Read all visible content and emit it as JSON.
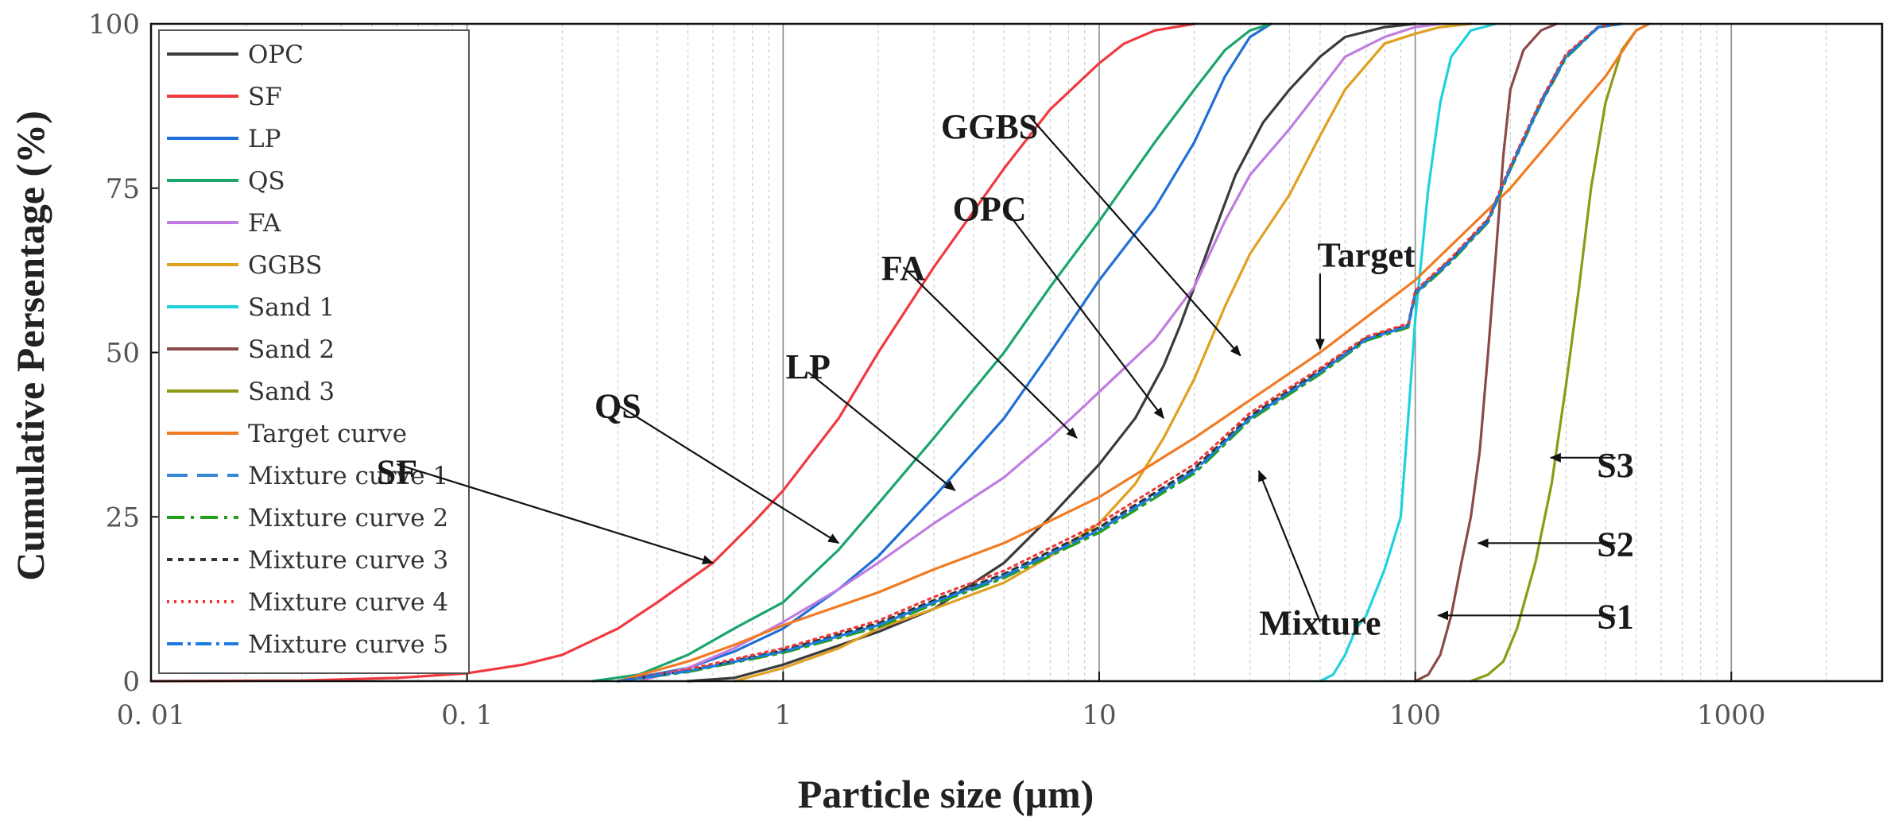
{
  "chart_data": {
    "type": "line",
    "xscale": "log",
    "xlim": [
      0.01,
      3000
    ],
    "ylim": [
      0,
      100
    ],
    "xlabel": "Particle size (μm)",
    "ylabel": "Cumulative Persentage (%)",
    "x_tick_values": [
      0.01,
      0.1,
      1,
      10,
      100,
      1000
    ],
    "x_tick_labels": [
      "0. 01",
      "0. 1",
      "1",
      "10",
      "100",
      "1000"
    ],
    "y_tick_values": [
      0,
      25,
      50,
      75,
      100
    ],
    "y_tick_labels": [
      "0",
      "25",
      "50",
      "75",
      "100"
    ],
    "grid": "x-minor",
    "legend_position": "top-left",
    "series": [
      {
        "name": "OPC",
        "color": "#3b3b3b",
        "dash": "solid",
        "points": [
          [
            0.5,
            0
          ],
          [
            0.7,
            0.5
          ],
          [
            1,
            2.5
          ],
          [
            2,
            7.5
          ],
          [
            3,
            11
          ],
          [
            5,
            18
          ],
          [
            7,
            25
          ],
          [
            10,
            33
          ],
          [
            13,
            40
          ],
          [
            16,
            48
          ],
          [
            18,
            54
          ],
          [
            20,
            60
          ],
          [
            23,
            68
          ],
          [
            27,
            77
          ],
          [
            33,
            85
          ],
          [
            40,
            90
          ],
          [
            50,
            95
          ],
          [
            60,
            98
          ],
          [
            80,
            99.5
          ],
          [
            100,
            100
          ]
        ]
      },
      {
        "name": "SF",
        "color": "#f0393f",
        "dash": "solid",
        "points": [
          [
            0.01,
            0
          ],
          [
            0.03,
            0.1
          ],
          [
            0.06,
            0.5
          ],
          [
            0.1,
            1.2
          ],
          [
            0.15,
            2.5
          ],
          [
            0.2,
            4
          ],
          [
            0.3,
            8
          ],
          [
            0.4,
            12
          ],
          [
            0.6,
            18
          ],
          [
            0.8,
            24
          ],
          [
            1,
            29
          ],
          [
            1.5,
            40
          ],
          [
            2,
            50
          ],
          [
            3,
            63
          ],
          [
            5,
            78
          ],
          [
            7,
            87
          ],
          [
            10,
            94
          ],
          [
            12,
            97
          ],
          [
            15,
            99
          ],
          [
            20,
            100
          ]
        ]
      },
      {
        "name": "LP",
        "color": "#1f6fd6",
        "dash": "solid",
        "points": [
          [
            0.3,
            0
          ],
          [
            0.5,
            2
          ],
          [
            0.7,
            4.5
          ],
          [
            1,
            8
          ],
          [
            1.5,
            14
          ],
          [
            2,
            19
          ],
          [
            3,
            28
          ],
          [
            5,
            40
          ],
          [
            7,
            50
          ],
          [
            10,
            61
          ],
          [
            15,
            72
          ],
          [
            20,
            82
          ],
          [
            25,
            92
          ],
          [
            30,
            98
          ],
          [
            35,
            100
          ]
        ]
      },
      {
        "name": "QS",
        "color": "#1aa56a",
        "dash": "solid",
        "points": [
          [
            0.25,
            0
          ],
          [
            0.35,
            1
          ],
          [
            0.5,
            4
          ],
          [
            0.7,
            8
          ],
          [
            1,
            12
          ],
          [
            1.5,
            20
          ],
          [
            2,
            27
          ],
          [
            3,
            37
          ],
          [
            5,
            50
          ],
          [
            7,
            60
          ],
          [
            10,
            70
          ],
          [
            15,
            82
          ],
          [
            20,
            90
          ],
          [
            25,
            96
          ],
          [
            30,
            99
          ],
          [
            35,
            100
          ]
        ]
      },
      {
        "name": "FA",
        "color": "#c07ce0",
        "dash": "solid",
        "points": [
          [
            0.35,
            0
          ],
          [
            0.5,
            2
          ],
          [
            0.7,
            5
          ],
          [
            1,
            9
          ],
          [
            1.5,
            14
          ],
          [
            2,
            18
          ],
          [
            3,
            24
          ],
          [
            5,
            31
          ],
          [
            7,
            37
          ],
          [
            10,
            44
          ],
          [
            15,
            52
          ],
          [
            20,
            60
          ],
          [
            25,
            70
          ],
          [
            30,
            77
          ],
          [
            40,
            84
          ],
          [
            50,
            90
          ],
          [
            60,
            95
          ],
          [
            80,
            98
          ],
          [
            100,
            99.5
          ],
          [
            120,
            100
          ]
        ]
      },
      {
        "name": "GGBS",
        "color": "#e0a020",
        "dash": "solid",
        "points": [
          [
            0.7,
            0
          ],
          [
            1,
            2
          ],
          [
            1.5,
            5
          ],
          [
            2,
            8
          ],
          [
            3,
            11
          ],
          [
            5,
            15
          ],
          [
            7,
            19
          ],
          [
            10,
            24
          ],
          [
            13,
            30
          ],
          [
            16,
            37
          ],
          [
            20,
            46
          ],
          [
            25,
            57
          ],
          [
            30,
            65
          ],
          [
            40,
            74
          ],
          [
            50,
            83
          ],
          [
            60,
            90
          ],
          [
            80,
            97
          ],
          [
            100,
            98.5
          ],
          [
            120,
            99.5
          ],
          [
            150,
            100
          ]
        ]
      },
      {
        "name": "Sand 1",
        "color": "#1ed2dc",
        "dash": "solid",
        "points": [
          [
            50,
            0
          ],
          [
            55,
            1
          ],
          [
            60,
            4
          ],
          [
            65,
            8
          ],
          [
            70,
            10
          ],
          [
            80,
            17
          ],
          [
            90,
            25
          ],
          [
            95,
            40
          ],
          [
            100,
            55
          ],
          [
            105,
            65
          ],
          [
            110,
            75
          ],
          [
            120,
            88
          ],
          [
            130,
            95
          ],
          [
            150,
            99
          ],
          [
            180,
            100
          ]
        ]
      },
      {
        "name": "Sand 2",
        "color": "#8b4a4a",
        "dash": "solid",
        "points": [
          [
            100,
            0
          ],
          [
            110,
            1
          ],
          [
            120,
            4
          ],
          [
            130,
            10
          ],
          [
            140,
            18
          ],
          [
            150,
            25
          ],
          [
            160,
            35
          ],
          [
            170,
            50
          ],
          [
            180,
            65
          ],
          [
            190,
            80
          ],
          [
            200,
            90
          ],
          [
            220,
            96
          ],
          [
            250,
            99
          ],
          [
            280,
            100
          ]
        ]
      },
      {
        "name": "Sand 3",
        "color": "#8c9a14",
        "dash": "solid",
        "points": [
          [
            150,
            0
          ],
          [
            170,
            1
          ],
          [
            190,
            3
          ],
          [
            210,
            8
          ],
          [
            240,
            18
          ],
          [
            270,
            30
          ],
          [
            300,
            45
          ],
          [
            330,
            60
          ],
          [
            360,
            75
          ],
          [
            400,
            88
          ],
          [
            450,
            96
          ],
          [
            500,
            99
          ],
          [
            550,
            100
          ]
        ]
      },
      {
        "name": "Target curve",
        "color": "#f27a22",
        "dash": "solid",
        "points": [
          [
            0.3,
            0
          ],
          [
            0.5,
            3
          ],
          [
            0.7,
            5.5
          ],
          [
            1,
            8.5
          ],
          [
            2,
            13.5
          ],
          [
            3,
            17
          ],
          [
            5,
            21
          ],
          [
            10,
            28
          ],
          [
            20,
            37
          ],
          [
            50,
            50
          ],
          [
            100,
            61
          ],
          [
            200,
            75
          ],
          [
            300,
            85
          ],
          [
            400,
            92
          ],
          [
            500,
            99
          ],
          [
            550,
            100
          ]
        ]
      },
      {
        "name": "Mixture curve 1",
        "color": "#3a87d6",
        "dash": "26,12",
        "points": [
          [
            0.3,
            0
          ],
          [
            0.5,
            1.5
          ],
          [
            1,
            4.5
          ],
          [
            2,
            8.5
          ],
          [
            3,
            12
          ],
          [
            5,
            16
          ],
          [
            10,
            23
          ],
          [
            20,
            32
          ],
          [
            30,
            40
          ],
          [
            50,
            47
          ],
          [
            70,
            52
          ],
          [
            95,
            54
          ],
          [
            100,
            59
          ],
          [
            130,
            64
          ],
          [
            170,
            70
          ],
          [
            200,
            78
          ],
          [
            250,
            88
          ],
          [
            300,
            95
          ],
          [
            380,
            99.5
          ],
          [
            450,
            100
          ]
        ]
      },
      {
        "name": "Mixture curve 2",
        "color": "#22a01c",
        "dash": "22,8,4,8",
        "points": [
          [
            0.3,
            0
          ],
          [
            0.5,
            1.4
          ],
          [
            1,
            4.3
          ],
          [
            2,
            8.2
          ],
          [
            3,
            11.7
          ],
          [
            5,
            15.7
          ],
          [
            10,
            22.6
          ],
          [
            20,
            31.6
          ],
          [
            30,
            39.7
          ],
          [
            50,
            46.7
          ],
          [
            70,
            51.8
          ],
          [
            95,
            53.8
          ],
          [
            100,
            58.8
          ],
          [
            130,
            63.8
          ],
          [
            170,
            69.8
          ],
          [
            200,
            77.8
          ],
          [
            250,
            87.8
          ],
          [
            300,
            94.8
          ],
          [
            380,
            99.5
          ],
          [
            450,
            100
          ]
        ]
      },
      {
        "name": "Mixture curve 3",
        "color": "#333333",
        "dash": "7,7",
        "points": [
          [
            0.3,
            0
          ],
          [
            0.5,
            1.6
          ],
          [
            1,
            4.7
          ],
          [
            2,
            8.8
          ],
          [
            3,
            12.3
          ],
          [
            5,
            16.3
          ],
          [
            10,
            23.4
          ],
          [
            20,
            32.4
          ],
          [
            30,
            40.3
          ],
          [
            50,
            47.3
          ],
          [
            70,
            52.2
          ],
          [
            95,
            54.2
          ],
          [
            100,
            59.2
          ],
          [
            130,
            64.2
          ],
          [
            170,
            70.2
          ],
          [
            200,
            78.2
          ],
          [
            250,
            88.2
          ],
          [
            300,
            95.2
          ],
          [
            380,
            99.5
          ],
          [
            450,
            100
          ]
        ]
      },
      {
        "name": "Mixture curve 4",
        "color": "#f03a3a",
        "dash": "3,6",
        "points": [
          [
            0.3,
            0
          ],
          [
            0.5,
            1.8
          ],
          [
            1,
            5
          ],
          [
            2,
            9.2
          ],
          [
            3,
            12.8
          ],
          [
            5,
            16.8
          ],
          [
            10,
            24
          ],
          [
            20,
            33
          ],
          [
            30,
            40.8
          ],
          [
            50,
            47.6
          ],
          [
            70,
            52.4
          ],
          [
            95,
            54.4
          ],
          [
            100,
            59.4
          ],
          [
            130,
            64.4
          ],
          [
            170,
            70.4
          ],
          [
            200,
            78.4
          ],
          [
            250,
            88.4
          ],
          [
            300,
            95.4
          ],
          [
            380,
            99.6
          ],
          [
            450,
            100
          ]
        ]
      },
      {
        "name": "Mixture curve 5",
        "color": "#1e7ae0",
        "dash": "20,6,4,6",
        "points": [
          [
            0.3,
            0
          ],
          [
            0.5,
            1.5
          ],
          [
            1,
            4.5
          ],
          [
            2,
            8.5
          ],
          [
            3,
            12
          ],
          [
            5,
            16
          ],
          [
            10,
            23
          ],
          [
            20,
            32
          ],
          [
            30,
            40
          ],
          [
            50,
            47
          ],
          [
            70,
            52
          ],
          [
            95,
            54
          ],
          [
            100,
            59
          ],
          [
            130,
            64
          ],
          [
            170,
            70
          ],
          [
            200,
            78
          ],
          [
            250,
            88
          ],
          [
            300,
            95
          ],
          [
            380,
            99.5
          ],
          [
            450,
            100
          ]
        ]
      }
    ],
    "annotations": [
      {
        "text": "SF",
        "x": 0.06,
        "y": 33,
        "tx": 0.6,
        "ty": 18,
        "text_x": 0.06,
        "text_y": 32
      },
      {
        "text": "QS",
        "x": 0.3,
        "y": 42,
        "tx": 1.5,
        "ty": 21,
        "text_x": 0.3,
        "text_y": 42
      },
      {
        "text": "LP",
        "x": 1.2,
        "y": 47,
        "tx": 3.5,
        "ty": 29,
        "text_x": 1.2,
        "text_y": 48
      },
      {
        "text": "FA",
        "x": 2.4,
        "y": 63,
        "tx": 8.5,
        "ty": 37,
        "text_x": 2.4,
        "text_y": 63
      },
      {
        "text": "OPC",
        "x": 5,
        "y": 72,
        "tx": 16,
        "ty": 40,
        "text_x": 4.5,
        "text_y": 72
      },
      {
        "text": "GGBS",
        "x": 6,
        "y": 86,
        "tx": 28,
        "ty": 49.5,
        "text_x": 4.5,
        "text_y": 84.5
      },
      {
        "text": "Target",
        "x": 50,
        "y": 62,
        "tx": 50,
        "ty": 50.5,
        "text_x": 70,
        "text_y": 65
      },
      {
        "text": "Mixture",
        "x": 50,
        "y": 9,
        "tx": 32,
        "ty": 32,
        "text_x": 50,
        "text_y": 9
      },
      {
        "text": "S1",
        "x": 430,
        "y": 10,
        "tx": 118,
        "ty": 10,
        "text_x": 430,
        "text_y": 10
      },
      {
        "text": "S2",
        "x": 430,
        "y": 21,
        "tx": 158,
        "ty": 21,
        "text_x": 430,
        "text_y": 21
      },
      {
        "text": "S3",
        "x": 430,
        "y": 34,
        "tx": 268,
        "ty": 34,
        "text_x": 430,
        "text_y": 33
      }
    ]
  }
}
